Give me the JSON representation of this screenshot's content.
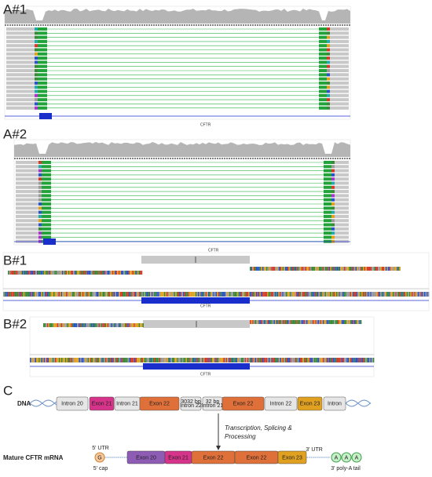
{
  "panels": [
    {
      "label": "A#1",
      "gene": "CFTR"
    },
    {
      "label": "A#2",
      "gene": "CFTR"
    },
    {
      "label": "B#1",
      "gene": "CFTR"
    },
    {
      "label": "B#2",
      "gene": "CFTR"
    }
  ],
  "diagram": {
    "label": "C",
    "dna_label": "DNA",
    "dna_segments": [
      {
        "lines": [
          "Intron 20"
        ]
      },
      {
        "lines": [
          "Exon 21"
        ]
      },
      {
        "lines": [
          "Intron 21"
        ]
      },
      {
        "lines": [
          "Exon 22"
        ]
      },
      {
        "lines": [
          "3032 bp",
          "Intron 22"
        ]
      },
      {
        "lines": [
          "32 bp",
          "Intron 21"
        ]
      },
      {
        "lines": [
          "Exon 22"
        ]
      },
      {
        "lines": [
          "Intron 22"
        ]
      },
      {
        "lines": [
          "Exon 23"
        ]
      },
      {
        "lines": [
          "Intron"
        ]
      }
    ],
    "process_lines": [
      "Transcription, Splicing &",
      "Processing"
    ],
    "mrna_label": "Mature CFTR mRNA",
    "utr5": "5' UTR",
    "cap": "G",
    "cap_label": "5' cap",
    "mrna_segments": [
      "Exon 20",
      "Exon 21",
      "Exon 22",
      "Exon 22",
      "Exon 23"
    ],
    "utr3": "3' UTR",
    "tail": [
      "A",
      "A",
      "A"
    ],
    "tail_label": "3' poly-A tail"
  }
}
